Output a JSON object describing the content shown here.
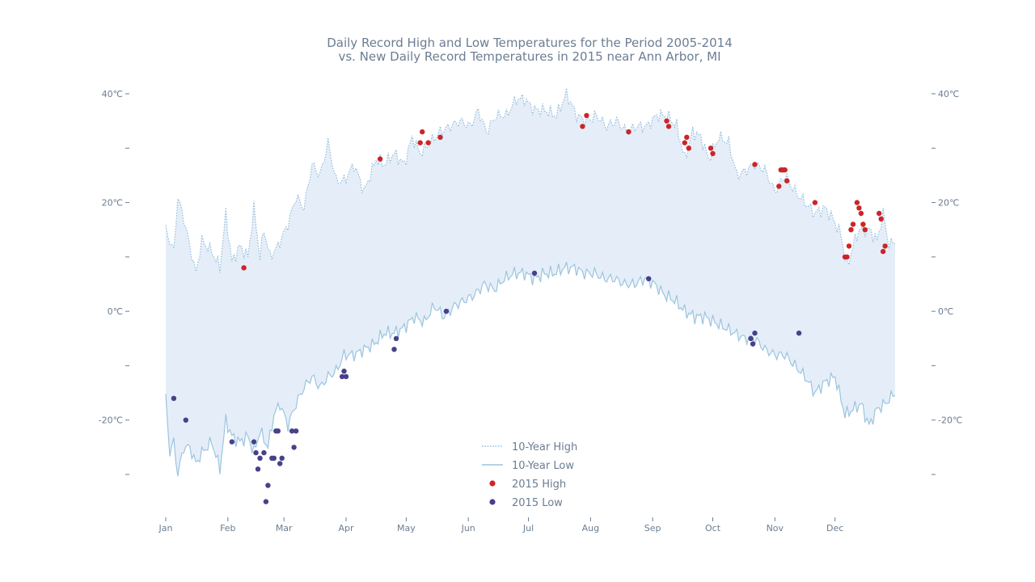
{
  "chart_data": {
    "type": "line",
    "title": "Daily Record High and Low Temperatures for the Period 2005-2014",
    "subtitle": "vs. New Daily Record Temperatures in 2015 near Ann Arbor, MI",
    "xlabel": "",
    "ylabel": "",
    "x_ticks": [
      "Jan",
      "Feb",
      "Mar",
      "Apr",
      "May",
      "Jun",
      "Jul",
      "Aug",
      "Sep",
      "Oct",
      "Nov",
      "Dec"
    ],
    "x_tick_days": [
      1,
      32,
      60,
      91,
      121,
      152,
      182,
      213,
      244,
      274,
      305,
      335
    ],
    "xlim": [
      1,
      365
    ],
    "ylim": [
      -38,
      42
    ],
    "y_ticks": [
      40,
      30,
      20,
      10,
      0,
      -10,
      -20,
      -30
    ],
    "y_tick_labels": [
      "40℃",
      "",
      "20℃",
      "",
      "0℃",
      "",
      "-20℃",
      ""
    ],
    "grid": false,
    "legend_position": "bottom-center",
    "colors": {
      "text": "#6c7d93",
      "axis_tick": "#6c7d93",
      "high_line": "#8fbcdc",
      "low_line": "#9cc4df",
      "fill": "#e5eef8",
      "record_high": "#cc2529",
      "record_low": "#46418a"
    },
    "series": [
      {
        "name": "10-Year High",
        "style": "dotted",
        "anchors": [
          [
            1,
            15
          ],
          [
            5,
            11
          ],
          [
            7,
            21
          ],
          [
            10,
            17
          ],
          [
            13,
            12
          ],
          [
            16,
            7
          ],
          [
            19,
            13
          ],
          [
            24,
            11
          ],
          [
            28,
            8
          ],
          [
            31,
            18
          ],
          [
            34,
            9
          ],
          [
            38,
            12
          ],
          [
            42,
            10
          ],
          [
            45,
            19
          ],
          [
            48,
            10
          ],
          [
            50,
            15
          ],
          [
            53,
            10
          ],
          [
            57,
            12
          ],
          [
            62,
            16
          ],
          [
            66,
            21
          ],
          [
            70,
            19
          ],
          [
            74,
            27
          ],
          [
            78,
            25
          ],
          [
            82,
            31
          ],
          [
            86,
            24
          ],
          [
            90,
            24
          ],
          [
            95,
            27
          ],
          [
            100,
            22
          ],
          [
            106,
            28
          ],
          [
            110,
            27
          ],
          [
            115,
            29
          ],
          [
            120,
            27
          ],
          [
            124,
            32
          ],
          [
            128,
            29
          ],
          [
            133,
            31
          ],
          [
            138,
            33
          ],
          [
            143,
            34
          ],
          [
            148,
            35
          ],
          [
            153,
            34
          ],
          [
            157,
            37
          ],
          [
            161,
            33
          ],
          [
            166,
            36
          ],
          [
            171,
            36
          ],
          [
            176,
            39
          ],
          [
            180,
            39
          ],
          [
            185,
            37
          ],
          [
            190,
            37
          ],
          [
            196,
            36
          ],
          [
            201,
            40
          ],
          [
            206,
            36
          ],
          [
            211,
            35
          ],
          [
            216,
            36
          ],
          [
            221,
            34
          ],
          [
            226,
            35
          ],
          [
            231,
            33
          ],
          [
            236,
            34
          ],
          [
            241,
            34
          ],
          [
            246,
            36
          ],
          [
            251,
            36
          ],
          [
            256,
            34
          ],
          [
            260,
            28
          ],
          [
            264,
            33
          ],
          [
            268,
            32
          ],
          [
            272,
            28
          ],
          [
            277,
            32
          ],
          [
            282,
            31
          ],
          [
            286,
            25
          ],
          [
            291,
            26
          ],
          [
            295,
            27
          ],
          [
            300,
            26
          ],
          [
            305,
            22
          ],
          [
            310,
            25
          ],
          [
            315,
            22
          ],
          [
            320,
            20
          ],
          [
            325,
            18
          ],
          [
            330,
            19
          ],
          [
            334,
            17
          ],
          [
            338,
            14
          ],
          [
            341,
            8
          ],
          [
            344,
            12
          ],
          [
            347,
            15
          ],
          [
            352,
            15
          ],
          [
            356,
            13
          ],
          [
            359,
            18
          ],
          [
            362,
            12
          ],
          [
            365,
            13
          ]
        ]
      },
      {
        "name": "10-Year Low",
        "style": "solid",
        "anchors": [
          [
            1,
            -16
          ],
          [
            3,
            -26
          ],
          [
            5,
            -24
          ],
          [
            7,
            -30
          ],
          [
            10,
            -25
          ],
          [
            13,
            -25
          ],
          [
            16,
            -28
          ],
          [
            19,
            -26
          ],
          [
            24,
            -24
          ],
          [
            28,
            -29
          ],
          [
            31,
            -20
          ],
          [
            34,
            -23
          ],
          [
            38,
            -24
          ],
          [
            42,
            -23
          ],
          [
            45,
            -26
          ],
          [
            48,
            -22
          ],
          [
            52,
            -25
          ],
          [
            55,
            -19
          ],
          [
            58,
            -17
          ],
          [
            62,
            -21
          ],
          [
            66,
            -17
          ],
          [
            70,
            -14
          ],
          [
            74,
            -12
          ],
          [
            78,
            -14
          ],
          [
            82,
            -12
          ],
          [
            86,
            -11
          ],
          [
            90,
            -8
          ],
          [
            95,
            -8
          ],
          [
            100,
            -7
          ],
          [
            105,
            -6
          ],
          [
            110,
            -4
          ],
          [
            115,
            -4
          ],
          [
            120,
            -3
          ],
          [
            125,
            -1
          ],
          [
            130,
            -2
          ],
          [
            135,
            1
          ],
          [
            140,
            -1
          ],
          [
            145,
            1
          ],
          [
            150,
            2
          ],
          [
            155,
            3
          ],
          [
            160,
            5
          ],
          [
            165,
            4
          ],
          [
            170,
            6
          ],
          [
            175,
            7
          ],
          [
            180,
            7
          ],
          [
            185,
            6
          ],
          [
            190,
            7
          ],
          [
            195,
            7
          ],
          [
            200,
            8
          ],
          [
            205,
            8
          ],
          [
            210,
            7
          ],
          [
            215,
            7
          ],
          [
            220,
            6
          ],
          [
            225,
            6
          ],
          [
            230,
            5
          ],
          [
            235,
            5
          ],
          [
            240,
            6
          ],
          [
            245,
            5
          ],
          [
            250,
            3
          ],
          [
            255,
            2
          ],
          [
            260,
            0
          ],
          [
            265,
            -1
          ],
          [
            270,
            -1
          ],
          [
            275,
            -2
          ],
          [
            280,
            -3
          ],
          [
            285,
            -4
          ],
          [
            290,
            -5
          ],
          [
            295,
            -5
          ],
          [
            300,
            -7
          ],
          [
            305,
            -8
          ],
          [
            310,
            -8
          ],
          [
            315,
            -10
          ],
          [
            320,
            -12
          ],
          [
            325,
            -15
          ],
          [
            330,
            -13
          ],
          [
            335,
            -12
          ],
          [
            340,
            -19
          ],
          [
            344,
            -18
          ],
          [
            348,
            -17
          ],
          [
            352,
            -21
          ],
          [
            356,
            -18
          ],
          [
            360,
            -17
          ],
          [
            365,
            -15
          ]
        ]
      }
    ],
    "record_highs": [
      [
        40,
        8
      ],
      [
        108,
        28
      ],
      [
        128,
        31
      ],
      [
        129,
        33
      ],
      [
        132,
        31
      ],
      [
        138,
        32
      ],
      [
        209,
        34
      ],
      [
        211,
        36
      ],
      [
        232,
        33
      ],
      [
        251,
        35
      ],
      [
        252,
        34
      ],
      [
        260,
        31
      ],
      [
        261,
        32
      ],
      [
        262,
        30
      ],
      [
        273,
        30
      ],
      [
        274,
        29
      ],
      [
        295,
        27
      ],
      [
        307,
        23
      ],
      [
        308,
        26
      ],
      [
        309,
        26
      ],
      [
        310,
        26
      ],
      [
        311,
        24
      ],
      [
        325,
        20
      ],
      [
        340,
        10
      ],
      [
        341,
        10
      ],
      [
        342,
        12
      ],
      [
        343,
        15
      ],
      [
        344,
        16
      ],
      [
        346,
        20
      ],
      [
        347,
        19
      ],
      [
        348,
        18
      ],
      [
        349,
        16
      ],
      [
        350,
        15
      ],
      [
        357,
        18
      ],
      [
        358,
        17
      ],
      [
        359,
        11
      ],
      [
        360,
        12
      ]
    ],
    "record_lows": [
      [
        5,
        -16
      ],
      [
        11,
        -20
      ],
      [
        34,
        -24
      ],
      [
        45,
        -24
      ],
      [
        46,
        -26
      ],
      [
        47,
        -29
      ],
      [
        48,
        -27
      ],
      [
        50,
        -26
      ],
      [
        51,
        -35
      ],
      [
        52,
        -32
      ],
      [
        54,
        -27
      ],
      [
        55,
        -27
      ],
      [
        56,
        -22
      ],
      [
        57,
        -22
      ],
      [
        58,
        -28
      ],
      [
        59,
        -27
      ],
      [
        64,
        -22
      ],
      [
        65,
        -25
      ],
      [
        66,
        -22
      ],
      [
        89,
        -12
      ],
      [
        90,
        -11
      ],
      [
        91,
        -12
      ],
      [
        115,
        -7
      ],
      [
        116,
        -5
      ],
      [
        141,
        0
      ],
      [
        185,
        7
      ],
      [
        242,
        6
      ],
      [
        293,
        -5
      ],
      [
        294,
        -6
      ],
      [
        295,
        -4
      ],
      [
        317,
        -4
      ]
    ]
  },
  "legend": {
    "items": [
      {
        "label": "10-Year High",
        "symbol": "dotted-line"
      },
      {
        "label": "10-Year Low",
        "symbol": "solid-line"
      },
      {
        "label": "2015 High",
        "symbol": "red-dot"
      },
      {
        "label": "2015 Low",
        "symbol": "purple-dot"
      }
    ]
  }
}
